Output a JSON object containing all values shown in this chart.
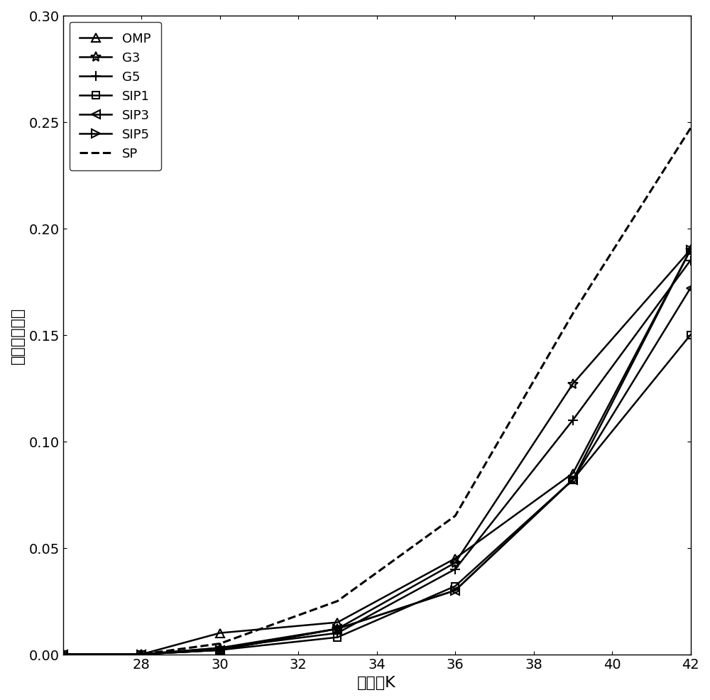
{
  "x": [
    26,
    28,
    30,
    33,
    36,
    39,
    42
  ],
  "OMP": [
    0.0,
    0.0,
    0.01,
    0.015,
    0.045,
    0.085,
    0.19
  ],
  "G3": [
    0.0,
    0.0,
    0.003,
    0.012,
    0.043,
    0.127,
    0.19
  ],
  "G5": [
    0.0,
    0.0,
    0.003,
    0.01,
    0.04,
    0.11,
    0.185
  ],
  "SIP1": [
    0.0,
    0.0,
    0.002,
    0.008,
    0.032,
    0.082,
    0.15
  ],
  "SIP3": [
    0.0,
    0.0,
    0.002,
    0.012,
    0.03,
    0.082,
    0.172
  ],
  "SIP5": [
    0.0,
    0.0,
    0.002,
    0.012,
    0.03,
    0.082,
    0.19
  ],
  "SP": [
    0.0,
    0.0,
    0.005,
    0.025,
    0.065,
    0.16,
    0.247
  ],
  "xlabel": "稀疏度K",
  "ylabel": "平均重构误差",
  "xlim": [
    26,
    42
  ],
  "ylim": [
    0,
    0.3
  ],
  "xticks": [
    28,
    30,
    32,
    34,
    36,
    38,
    40,
    42
  ],
  "yticks": [
    0,
    0.05,
    0.1,
    0.15,
    0.2,
    0.25,
    0.3
  ]
}
